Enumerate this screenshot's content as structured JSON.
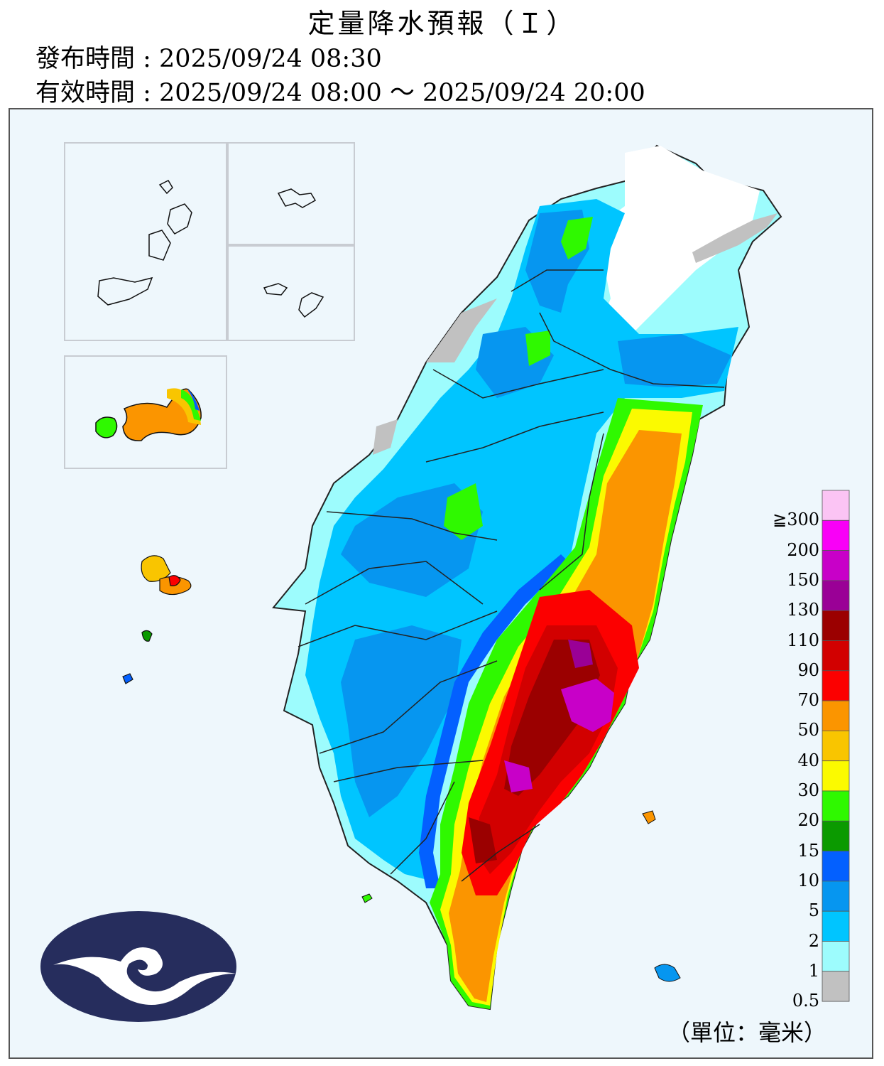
{
  "header": {
    "title": "定量降水預報（Ｉ）",
    "issued": "發布時間 : 2025/09/24 08:30",
    "valid": "有效時間 : 2025/09/24 08:00 ～ 2025/09/24 20:00"
  },
  "legend": {
    "unit": "（單位：毫米）",
    "labels": [
      "≧300",
      "200",
      "150",
      "130",
      "110",
      "90",
      "70",
      "50",
      "40",
      "30",
      "20",
      "15",
      "10",
      "5",
      "2",
      "1",
      "0.5"
    ],
    "colors": [
      "#fbc4f4",
      "#f900f7",
      "#c800c8",
      "#9a0096",
      "#9b0000",
      "#d20000",
      "#fc0000",
      "#fb9500",
      "#f9c500",
      "#fbfa00",
      "#2ff900",
      "#0b9a00",
      "#0360ff",
      "#0696f0",
      "#00c5ff",
      "#9dfcfd",
      "#c1c1c1"
    ]
  },
  "map": {
    "background": "#eef7fc",
    "logo_color": "#262d5d"
  }
}
